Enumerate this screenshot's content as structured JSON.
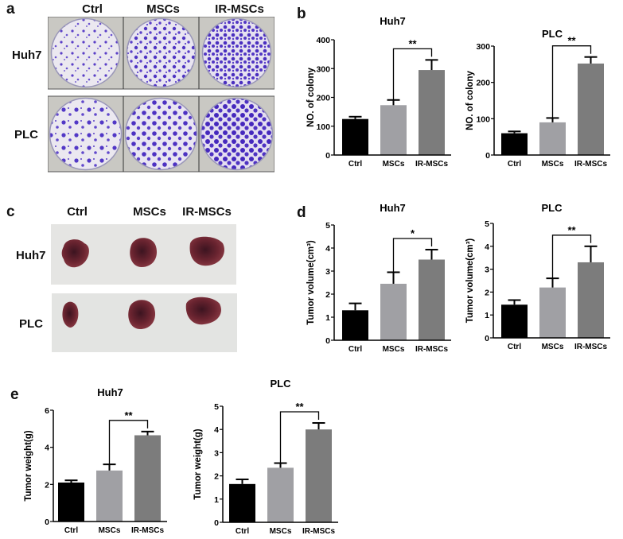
{
  "figure": {
    "panels": {
      "a": {
        "label": "a",
        "columns": [
          "Ctrl",
          "MSCs",
          "IR-MSCs"
        ],
        "rows": [
          "Huh7",
          "PLC"
        ],
        "content": "crystal violet colony formation plates"
      },
      "b": {
        "label": "b"
      },
      "c": {
        "label": "c",
        "columns": [
          "Ctrl",
          "MSCs",
          "IR-MSCs"
        ],
        "rows": [
          "Huh7",
          "PLC"
        ],
        "content": "excised xenograft tumors"
      },
      "d": {
        "label": "d"
      },
      "e": {
        "label": "e"
      }
    },
    "colors": {
      "ctrl": "#000000",
      "mscs": "#a0a0a4",
      "ir_mscs": "#7c7c7c",
      "plate_bg": "#e9e6ef",
      "colony": "#5a3fc7",
      "tumor": "#6a2430",
      "photo_bg": "#e4e4e2"
    }
  },
  "chart_data": [
    {
      "id": "b-huh7",
      "panel": "b",
      "type": "bar",
      "title": "Huh7",
      "categories": [
        "Ctrl",
        "MSCs",
        "IR-MSCs"
      ],
      "values": [
        125,
        173,
        295
      ],
      "errors": [
        8,
        18,
        35
      ],
      "ylabel": "NO. of colony",
      "xlabel": "",
      "ylim": [
        0,
        400
      ],
      "yticks": [
        0,
        100,
        200,
        300,
        400
      ],
      "annotation": {
        "text": "**",
        "from": "MSCs",
        "to": "IR-MSCs"
      },
      "grid": false,
      "legend": "none"
    },
    {
      "id": "b-plc",
      "panel": "b",
      "type": "bar",
      "title": "PLC",
      "categories": [
        "Ctrl",
        "MSCs",
        "IR-MSCs"
      ],
      "values": [
        60,
        90,
        252
      ],
      "errors": [
        5,
        12,
        18
      ],
      "ylabel": "NO. of colony",
      "xlabel": "",
      "ylim": [
        0,
        300
      ],
      "yticks": [
        0,
        100,
        200,
        300
      ],
      "annotation": {
        "text": "**",
        "from": "MSCs",
        "to": "IR-MSCs"
      },
      "grid": false,
      "legend": "none"
    },
    {
      "id": "d-huh7",
      "panel": "d",
      "type": "bar",
      "title": "Huh7",
      "categories": [
        "Ctrl",
        "MSCs",
        "IR-MSCs"
      ],
      "values": [
        1.3,
        2.45,
        3.5
      ],
      "errors": [
        0.3,
        0.5,
        0.43
      ],
      "ylabel": "Tumor volume(cm³)",
      "xlabel": "",
      "ylim": [
        0,
        5
      ],
      "yticks": [
        0,
        1,
        2,
        3,
        4,
        5
      ],
      "annotation": {
        "text": "*",
        "from": "MSCs",
        "to": "IR-MSCs"
      },
      "grid": false,
      "legend": "none"
    },
    {
      "id": "d-plc",
      "panel": "d",
      "type": "bar",
      "title": "PLC",
      "categories": [
        "Ctrl",
        "MSCs",
        "IR-MSCs"
      ],
      "values": [
        1.45,
        2.2,
        3.3
      ],
      "errors": [
        0.2,
        0.4,
        0.7
      ],
      "ylabel": "Tumor volume(cm³)",
      "xlabel": "",
      "ylim": [
        0,
        5
      ],
      "yticks": [
        0,
        1,
        2,
        3,
        4,
        5
      ],
      "annotation": {
        "text": "**",
        "from": "MSCs",
        "to": "IR-MSCs"
      },
      "grid": false,
      "legend": "none"
    },
    {
      "id": "e-huh7",
      "panel": "e",
      "type": "bar",
      "title": "Huh7",
      "categories": [
        "Ctrl",
        "MSCs",
        "IR-MSCs"
      ],
      "values": [
        2.1,
        2.75,
        4.65
      ],
      "errors": [
        0.12,
        0.33,
        0.2
      ],
      "ylabel": "Tumor weight(g)",
      "xlabel": "",
      "ylim": [
        0,
        6
      ],
      "yticks": [
        0,
        2,
        4,
        6
      ],
      "annotation": {
        "text": "**",
        "from": "MSCs",
        "to": "IR-MSCs"
      },
      "grid": false,
      "legend": "none"
    },
    {
      "id": "e-plc",
      "panel": "e",
      "type": "bar",
      "title": "PLC",
      "categories": [
        "Ctrl",
        "MSCs",
        "IR-MSCs"
      ],
      "values": [
        1.65,
        2.35,
        4.0
      ],
      "errors": [
        0.2,
        0.2,
        0.28
      ],
      "ylabel": "Tumor weight(g)",
      "xlabel": "",
      "ylim": [
        0,
        5
      ],
      "yticks": [
        0,
        1,
        2,
        3,
        4,
        5
      ],
      "annotation": {
        "text": "**",
        "from": "MSCs",
        "to": "IR-MSCs"
      },
      "grid": false,
      "legend": "none"
    }
  ]
}
